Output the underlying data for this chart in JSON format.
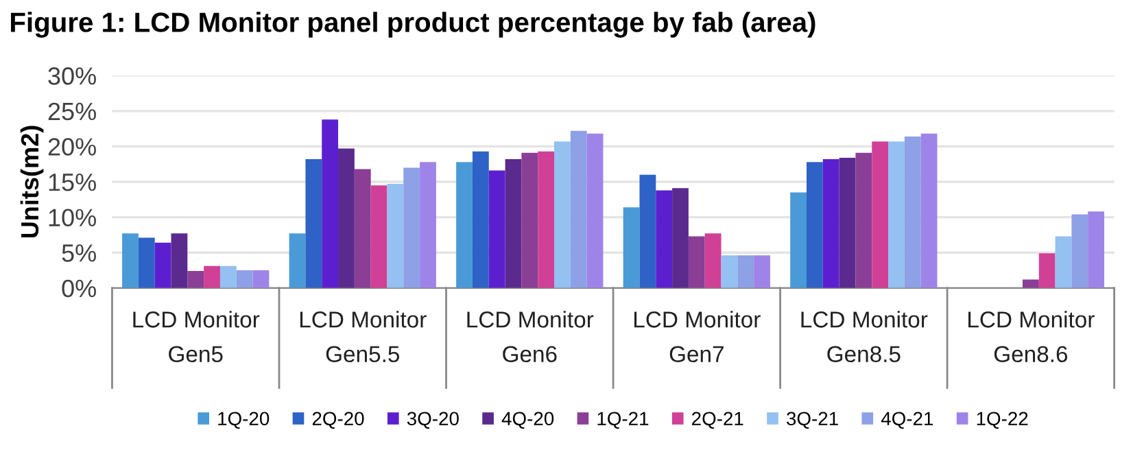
{
  "chart_data": {
    "type": "bar",
    "title": "Figure 1: LCD Monitor panel product percentage by fab (area)",
    "ylabel": "Units(m2)",
    "categories": [
      "LCD Monitor\nGen5",
      "LCD Monitor\nGen5.5",
      "LCD Monitor\nGen6",
      "LCD Monitor\nGen7",
      "LCD Monitor\nGen8.5",
      "LCD Monitor\nGen8.6"
    ],
    "series": [
      {
        "name": "1Q-20",
        "color": "#4a9ad8",
        "values": [
          7.7,
          7.7,
          17.8,
          11.4,
          13.5,
          null
        ]
      },
      {
        "name": "2Q-20",
        "color": "#2e62c6",
        "values": [
          7.1,
          18.2,
          19.3,
          16.0,
          17.8,
          null
        ]
      },
      {
        "name": "3Q-20",
        "color": "#5c1fd0",
        "values": [
          6.4,
          23.8,
          16.6,
          13.8,
          18.2,
          null
        ]
      },
      {
        "name": "4Q-20",
        "color": "#5a2a8e",
        "values": [
          7.7,
          19.7,
          18.2,
          14.1,
          18.4,
          null
        ]
      },
      {
        "name": "1Q-21",
        "color": "#8a3e96",
        "values": [
          2.4,
          16.8,
          19.1,
          7.3,
          19.1,
          1.2
        ]
      },
      {
        "name": "2Q-21",
        "color": "#d04096",
        "values": [
          3.1,
          14.5,
          19.3,
          7.7,
          20.7,
          4.9
        ]
      },
      {
        "name": "3Q-21",
        "color": "#94c0f2",
        "values": [
          3.1,
          14.7,
          20.7,
          4.6,
          20.7,
          7.3
        ]
      },
      {
        "name": "4Q-21",
        "color": "#8ea0e6",
        "values": [
          2.5,
          17.0,
          22.2,
          4.6,
          21.4,
          10.4
        ]
      },
      {
        "name": "1Q-22",
        "color": "#9e84e8",
        "values": [
          2.5,
          17.8,
          21.8,
          4.6,
          21.8,
          10.8
        ]
      }
    ],
    "ylim": [
      0,
      30
    ],
    "yticks": [
      {
        "value": 0,
        "label": "0%"
      },
      {
        "value": 5,
        "label": "5%"
      },
      {
        "value": 10,
        "label": "10%"
      },
      {
        "value": 15,
        "label": "15%"
      },
      {
        "value": 20,
        "label": "20%"
      },
      {
        "value": 25,
        "label": "25%"
      },
      {
        "value": 30,
        "label": "30%"
      }
    ],
    "grid": "y",
    "legend": "bottom"
  }
}
